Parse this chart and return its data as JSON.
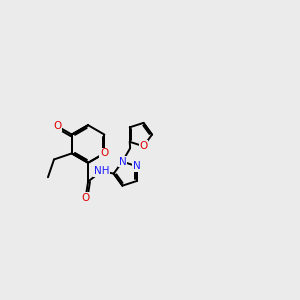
{
  "bg": "#ebebeb",
  "bond_color": "#000000",
  "lw": 1.4,
  "atom_colors": {
    "O": "#e00000",
    "N": "#1a1aff",
    "H": "#808080"
  },
  "fs": 7.5,
  "bl": 0.55
}
